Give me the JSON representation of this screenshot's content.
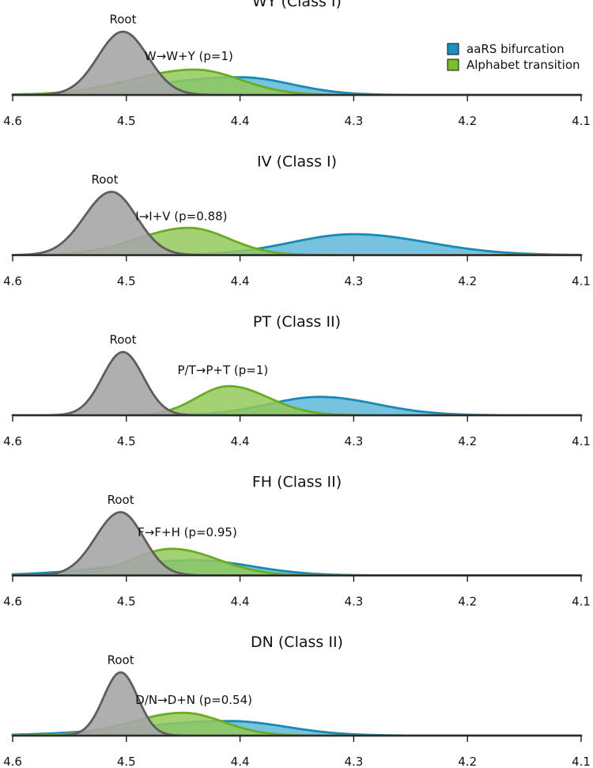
{
  "colors": {
    "root_fill": "#a6a6a6",
    "root_line": "#5e5e5e",
    "aars_fill": "#6fc0dd",
    "aars_line": "#1a8ab5",
    "alpha_fill": "#93c95a",
    "alpha_line": "#6aac22",
    "axis": "#1b1b1b"
  },
  "legend": {
    "items": [
      {
        "label": "aaRS bifurcation",
        "color": "#1e90c0"
      },
      {
        "label": "Alphabet transition",
        "color": "#79be2b"
      }
    ]
  },
  "chart_data": [
    {
      "type": "area",
      "title": "WY (Class I)",
      "xlim": [
        4.6,
        4.1
      ],
      "xticks": [
        "4.6",
        "4.5",
        "4.4",
        "4.3",
        "4.2",
        "4.1"
      ],
      "series": [
        {
          "name": "aaRS bifurcation",
          "mu": 4.4,
          "sl": 0.045,
          "sr": 0.075,
          "peak": 0.28
        },
        {
          "name": "Alphabet transition",
          "mu": 4.44,
          "sl": 0.04,
          "sr": 0.055,
          "peak": 0.4
        },
        {
          "name": "Root",
          "mu": 4.503,
          "sl": 0.022,
          "sr": 0.022,
          "peak": 1.0
        }
      ],
      "annotations": [
        {
          "text": "Root",
          "x": 4.503,
          "y": 1.13,
          "anchor": "middle"
        },
        {
          "text": "W→W+Y (p=1)",
          "x": 4.484,
          "y": 0.55,
          "anchor": "start"
        }
      ]
    },
    {
      "type": "area",
      "title": "IV (Class I)",
      "xlim": [
        4.6,
        4.1
      ],
      "xticks": [
        "4.6",
        "4.5",
        "4.4",
        "4.3",
        "4.2",
        "4.1"
      ],
      "series": [
        {
          "name": "aaRS bifurcation",
          "mu": 4.3,
          "sl": 0.065,
          "sr": 0.055,
          "peak": 0.33
        },
        {
          "name": "Alphabet transition",
          "mu": 4.445,
          "sl": 0.035,
          "sr": 0.045,
          "peak": 0.43
        },
        {
          "name": "Root",
          "mu": 4.513,
          "sl": 0.022,
          "sr": 0.024,
          "peak": 1.0
        }
      ],
      "annotations": [
        {
          "text": "Root",
          "x": 4.519,
          "y": 1.13,
          "anchor": "middle"
        },
        {
          "text": "I→I+V (p=0.88)",
          "x": 4.492,
          "y": 0.55,
          "anchor": "start"
        }
      ]
    },
    {
      "type": "area",
      "title": "PT (Class II)",
      "xlim": [
        4.6,
        4.1
      ],
      "xticks": [
        "4.6",
        "4.5",
        "4.4",
        "4.3",
        "4.2",
        "4.1"
      ],
      "series": [
        {
          "name": "aaRS bifurcation",
          "mu": 4.33,
          "sl": 0.05,
          "sr": 0.045,
          "peak": 0.29
        },
        {
          "name": "Alphabet transition",
          "mu": 4.41,
          "sl": 0.035,
          "sr": 0.028,
          "peak": 0.46
        },
        {
          "name": "Root",
          "mu": 4.503,
          "sl": 0.018,
          "sr": 0.018,
          "peak": 1.0
        }
      ],
      "annotations": [
        {
          "text": "Root",
          "x": 4.503,
          "y": 1.13,
          "anchor": "middle"
        },
        {
          "text": "P/T→P+T (p=1)",
          "x": 4.455,
          "y": 0.65,
          "anchor": "start"
        }
      ]
    },
    {
      "type": "area",
      "title": "FH (Class II)",
      "xlim": [
        4.6,
        4.1
      ],
      "xticks": [
        "4.6",
        "4.5",
        "4.4",
        "4.3",
        "4.2",
        "4.1"
      ],
      "series": [
        {
          "name": "aaRS bifurcation",
          "mu": 4.44,
          "sl": 0.05,
          "sr": 0.07,
          "peak": 0.24
        },
        {
          "name": "Alphabet transition",
          "mu": 4.46,
          "sl": 0.04,
          "sr": 0.035,
          "peak": 0.42
        },
        {
          "name": "Root",
          "mu": 4.505,
          "sl": 0.02,
          "sr": 0.022,
          "peak": 1.0
        }
      ],
      "annotations": [
        {
          "text": "Root",
          "x": 4.505,
          "y": 1.13,
          "anchor": "middle"
        },
        {
          "text": "F→F+H (p=0.95)",
          "x": 4.49,
          "y": 0.62,
          "anchor": "start"
        }
      ]
    },
    {
      "type": "area",
      "title": "DN (Class II)",
      "xlim": [
        4.6,
        4.1
      ],
      "xticks": [
        "4.6",
        "4.5",
        "4.4",
        "4.3",
        "4.2",
        "4.1"
      ],
      "series": [
        {
          "name": "aaRS bifurcation",
          "mu": 4.41,
          "sl": 0.05,
          "sr": 0.08,
          "peak": 0.23
        },
        {
          "name": "Alphabet transition",
          "mu": 4.45,
          "sl": 0.035,
          "sr": 0.045,
          "peak": 0.36
        },
        {
          "name": "Root",
          "mu": 4.505,
          "sl": 0.015,
          "sr": 0.015,
          "peak": 1.0
        }
      ],
      "annotations": [
        {
          "text": "Root",
          "x": 4.505,
          "y": 1.13,
          "anchor": "middle"
        },
        {
          "text": "D/N→D+N (p=0.54)",
          "x": 4.492,
          "y": 0.5,
          "anchor": "start"
        }
      ]
    }
  ]
}
